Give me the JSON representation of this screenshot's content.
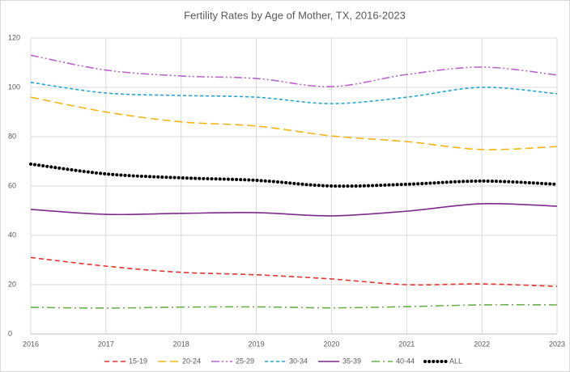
{
  "chart_data": {
    "type": "line",
    "title": "Fertility Rates by Age of Mother, TX, 2016-2023",
    "categories": [
      "2016",
      "2017",
      "2018",
      "2019",
      "2020",
      "2021",
      "2022",
      "2023"
    ],
    "series": [
      {
        "name": "15-19",
        "color": "#e8322c",
        "style": "dashed",
        "values": [
          31,
          27.5,
          25,
          24,
          22.3,
          20,
          20.3,
          19.3
        ]
      },
      {
        "name": "20-24",
        "color": "#f2b619",
        "style": "long-dash",
        "values": [
          96,
          90,
          86,
          84.3,
          80.3,
          78,
          74.8,
          76
        ]
      },
      {
        "name": "25-29",
        "color": "#b866c8",
        "style": "dash-dot-dot",
        "values": [
          113,
          107,
          104.6,
          103.6,
          100.3,
          105.2,
          108.2,
          105
        ]
      },
      {
        "name": "30-34",
        "color": "#1fa6d8",
        "style": "short-dash",
        "values": [
          102,
          97.7,
          96.7,
          96,
          93.4,
          96,
          100,
          97.4
        ]
      },
      {
        "name": "35-39",
        "color": "#7d2a8a",
        "style": "solid",
        "values": [
          50.5,
          48.5,
          48.9,
          49.2,
          47.9,
          49.8,
          52.8,
          51.8
        ]
      },
      {
        "name": "40-44",
        "color": "#6ab04c",
        "style": "dash-dot",
        "values": [
          10.8,
          10.5,
          10.9,
          11,
          10.6,
          11.1,
          11.8,
          11.8
        ]
      },
      {
        "name": "ALL",
        "color": "#000000",
        "style": "dotted",
        "values": [
          68.9,
          64.9,
          63.3,
          62.3,
          60,
          60.7,
          62,
          60.7
        ]
      }
    ],
    "ylim": [
      0,
      120
    ],
    "yticks": [
      0,
      20,
      40,
      60,
      80,
      100,
      120
    ],
    "grid": true,
    "legend": "bottom"
  }
}
